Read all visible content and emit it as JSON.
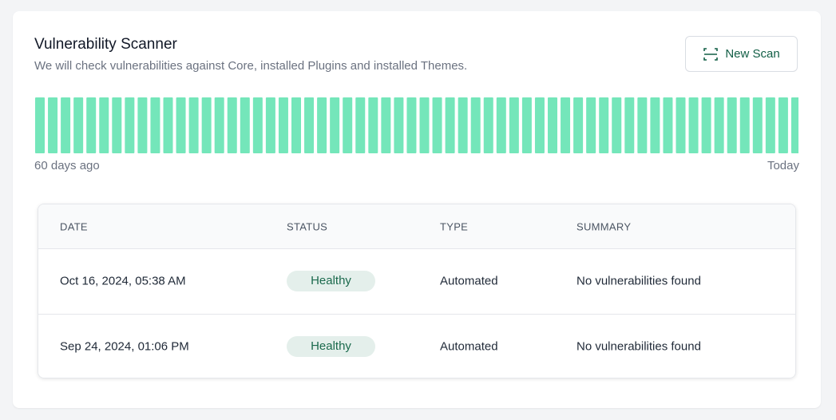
{
  "header": {
    "title": "Vulnerability Scanner",
    "subtitle": "We will check vulnerabilities against Core, installed Plugins and installed Themes.",
    "button": "New Scan"
  },
  "timeline": {
    "start_label": "60 days ago",
    "end_label": "Today"
  },
  "table": {
    "columns": [
      "DATE",
      "STATUS",
      "TYPE",
      "SUMMARY"
    ],
    "rows": [
      [
        "Oct 16, 2024, 05:38 AM",
        "Healthy",
        "Automated",
        "No vulnerabilities found"
      ],
      [
        "Sep 24, 2024, 01:06 PM",
        "Healthy",
        "Automated",
        "No vulnerabilities found"
      ]
    ]
  }
}
